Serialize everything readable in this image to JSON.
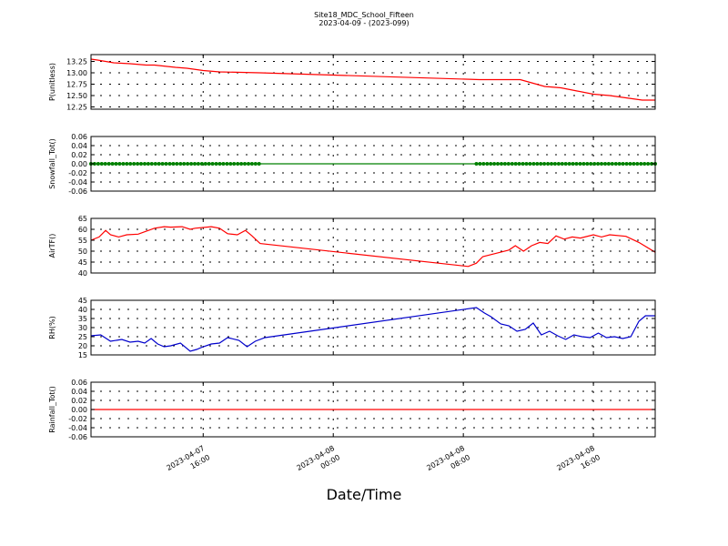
{
  "title_line1": "Site18_MDC_School_Fifteen",
  "title_line2": "2023-04-09 - (2023-099)",
  "xlabel": "Date/Time",
  "chart_data": {
    "type": "line",
    "x_ticks": [
      {
        "line1": "2023-04-07",
        "line2": "16:00",
        "t": 16
      },
      {
        "line1": "2023-04-08",
        "line2": "00:00",
        "t": 24
      },
      {
        "line1": "2023-04-08",
        "line2": "08:00",
        "t": 32
      },
      {
        "line1": "2023-04-08",
        "line2": "16:00",
        "t": 40
      }
    ],
    "x_range_hours": [
      9.1,
      43.8
    ],
    "grid": true,
    "panels": [
      {
        "ylabel": "P(unitless)",
        "color": "#ff0000",
        "marker": false,
        "ylim": [
          12.2,
          13.4
        ],
        "yticks": [
          12.25,
          12.5,
          12.75,
          13.0,
          13.25
        ],
        "ytick_labels": [
          "12.25",
          "12.50",
          "12.75",
          "13.00",
          "13.25"
        ],
        "t": [
          9.1,
          9.5,
          10.5,
          11.5,
          12.5,
          13.0,
          14.3,
          15.0,
          16.0,
          17.0,
          19.5,
          24.0,
          33.0,
          35.5,
          36.0,
          37.0,
          38.0,
          39.0,
          40.0,
          41.0,
          42.0,
          43.0,
          43.8
        ],
        "v": [
          13.3,
          13.28,
          13.22,
          13.2,
          13.17,
          13.17,
          13.12,
          13.1,
          13.05,
          13.02,
          13.0,
          12.95,
          12.85,
          12.85,
          12.8,
          12.7,
          12.67,
          12.6,
          12.53,
          12.5,
          12.45,
          12.4,
          12.4
        ]
      },
      {
        "ylabel": "Snowfall_Tot()",
        "color": "#008000",
        "marker": true,
        "ylim": [
          -0.06,
          0.06
        ],
        "yticks": [
          -0.06,
          -0.04,
          -0.02,
          0.0,
          0.02,
          0.04,
          0.06
        ],
        "ytick_labels": [
          "-0.06",
          "-0.04",
          "-0.02",
          "0.00",
          "0.02",
          "0.04",
          "0.06"
        ],
        "t": [
          9.1,
          19.6,
          32.8,
          43.8
        ],
        "v": [
          0,
          0,
          0,
          0
        ],
        "marker_ranges": [
          [
            9.1,
            19.6
          ],
          [
            32.8,
            43.8
          ]
        ],
        "marker_step": 0.22
      },
      {
        "ylabel": "AirTF()",
        "color": "#ff0000",
        "marker": false,
        "ylim": [
          40,
          65
        ],
        "yticks": [
          40,
          45,
          50,
          55,
          60,
          65
        ],
        "ytick_labels": [
          "40",
          "45",
          "50",
          "55",
          "60",
          "65"
        ],
        "t": [
          9.1,
          9.6,
          10.0,
          10.3,
          10.8,
          11.3,
          12.0,
          13.0,
          13.6,
          14.0,
          14.7,
          15.2,
          15.5,
          16.5,
          17.0,
          17.5,
          18.1,
          18.6,
          19.0,
          19.5,
          32.3,
          32.8,
          33.2,
          34.0,
          34.8,
          35.2,
          35.7,
          36.2,
          36.7,
          37.2,
          37.7,
          38.2,
          38.7,
          39.2,
          40.0,
          40.5,
          41.0,
          42.0,
          42.8,
          43.8
        ],
        "v": [
          55,
          56.5,
          59.5,
          57.5,
          56.5,
          57.5,
          57.8,
          60.5,
          61.2,
          61.0,
          61.2,
          60.0,
          60.5,
          61.2,
          60.5,
          58.0,
          57.5,
          59.5,
          57.0,
          53.5,
          43.0,
          44.5,
          47.5,
          49.0,
          50.5,
          52.5,
          50.0,
          52.5,
          54.0,
          53.5,
          57.0,
          55.5,
          56.5,
          56.0,
          57.5,
          56.5,
          57.5,
          56.8,
          54.0,
          49.5
        ]
      },
      {
        "ylabel": "RH(%)",
        "color": "#0000cc",
        "marker": false,
        "ylim": [
          15,
          45
        ],
        "yticks": [
          15,
          20,
          25,
          30,
          35,
          40,
          45
        ],
        "ytick_labels": [
          "15",
          "20",
          "25",
          "30",
          "35",
          "40",
          "45"
        ],
        "t": [
          9.1,
          9.7,
          10.3,
          11.0,
          11.5,
          12.0,
          12.4,
          12.8,
          13.2,
          13.6,
          14.0,
          14.6,
          15.2,
          15.6,
          16.0,
          16.5,
          17.0,
          17.5,
          18.2,
          18.7,
          19.2,
          19.8,
          32.8,
          33.3,
          33.7,
          34.3,
          34.8,
          35.3,
          35.8,
          36.3,
          36.8,
          37.3,
          37.8,
          38.3,
          38.8,
          39.3,
          39.8,
          40.3,
          40.8,
          41.3,
          41.8,
          42.3,
          42.8,
          43.2,
          43.8
        ],
        "v": [
          25.5,
          26.0,
          22.5,
          23.5,
          22.0,
          22.5,
          21.5,
          24.0,
          21.0,
          19.5,
          20.0,
          21.5,
          17.0,
          18.0,
          19.5,
          21.0,
          21.5,
          24.5,
          23.0,
          19.5,
          22.5,
          24.5,
          41.0,
          38.0,
          36.0,
          32.0,
          31.0,
          28.0,
          29.0,
          32.5,
          26.0,
          28.0,
          25.5,
          23.5,
          26.0,
          25.0,
          24.5,
          27.0,
          24.5,
          25.0,
          24.0,
          25.0,
          33.5,
          36.5,
          36.5
        ]
      },
      {
        "ylabel": "Rainfall_Tot()",
        "color": "#ff0000",
        "marker": false,
        "ylim": [
          -0.06,
          0.06
        ],
        "yticks": [
          -0.06,
          -0.04,
          -0.02,
          0.0,
          0.02,
          0.04,
          0.06
        ],
        "ytick_labels": [
          "-0.06",
          "-0.04",
          "-0.02",
          "0.00",
          "0.02",
          "0.04",
          "0.06"
        ],
        "t": [
          9.1,
          43.8
        ],
        "v": [
          0,
          0
        ]
      }
    ]
  }
}
